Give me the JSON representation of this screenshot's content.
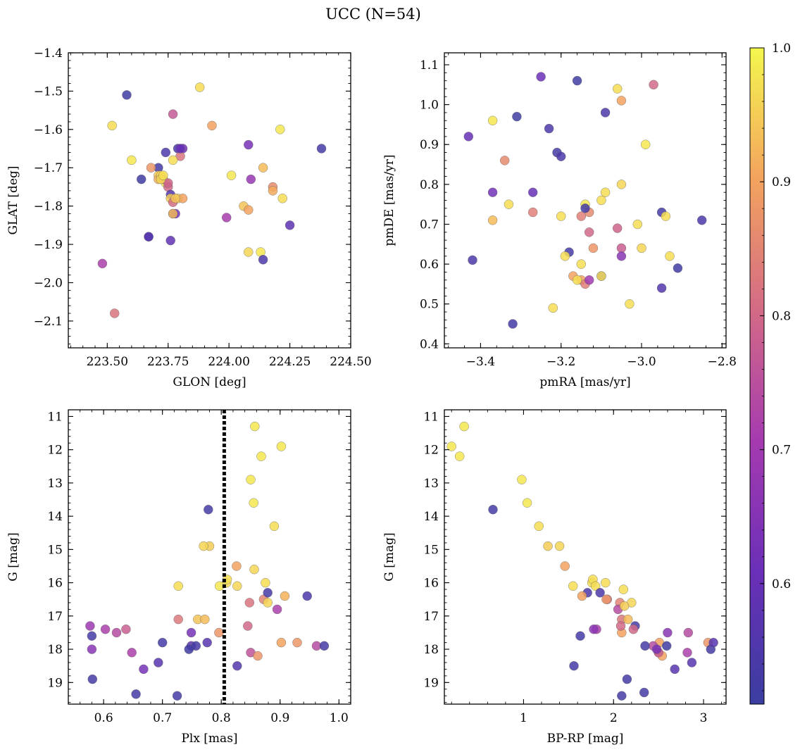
{
  "figure": {
    "title": "UCC (N=54)"
  },
  "chart_data": [
    {
      "type": "scatter",
      "xlabel": "GLON [deg]",
      "ylabel": "GLAT [deg]",
      "xlim": [
        223.34,
        224.5
      ],
      "ylim": [
        -2.17,
        -1.4
      ],
      "xticks": [
        223.5,
        223.75,
        224.0,
        224.25,
        224.5
      ],
      "xticklabels": [
        "223.50",
        "223.75",
        "224.00",
        "224.25",
        "224.50"
      ],
      "yticks": [
        -2.1,
        -2.0,
        -1.9,
        -1.8,
        -1.7,
        -1.6,
        -1.5,
        -1.4
      ],
      "yticklabels": [
        "−2.1",
        "−2.0",
        "−1.9",
        "−1.8",
        "−1.7",
        "−1.6",
        "−1.5",
        "−1.4"
      ],
      "x": [
        223.58,
        223.52,
        223.6,
        223.88,
        223.93,
        223.77,
        223.64,
        223.67,
        223.74,
        223.71,
        223.79,
        223.81,
        223.71,
        223.74,
        223.75,
        223.76,
        223.77,
        223.78,
        223.8,
        223.73,
        223.71,
        223.68,
        223.72,
        223.76,
        223.77,
        223.79,
        223.81,
        223.8,
        223.75,
        223.77,
        223.77,
        223.67,
        223.76,
        223.48,
        223.53,
        224.08,
        224.01,
        224.09,
        224.14,
        224.21,
        224.18,
        224.18,
        224.22,
        224.38,
        224.06,
        224.08,
        223.99,
        224.08,
        224.13,
        224.14,
        224.25,
        223.72,
        223.73,
        223.78
      ],
      "y": [
        -1.51,
        -1.59,
        -1.68,
        -1.49,
        -1.59,
        -1.56,
        -1.73,
        -1.88,
        -1.66,
        -1.7,
        -1.65,
        -1.65,
        -1.72,
        -1.74,
        -1.75,
        -1.77,
        -1.82,
        -1.82,
        -1.67,
        -1.73,
        -1.73,
        -1.7,
        -1.72,
        -1.78,
        -1.68,
        -1.78,
        -1.78,
        -1.65,
        -1.74,
        -1.79,
        -1.82,
        -1.88,
        -1.89,
        -1.95,
        -2.08,
        -1.64,
        -1.72,
        -1.73,
        -1.7,
        -1.6,
        -1.75,
        -1.76,
        -1.78,
        -1.65,
        -1.8,
        -1.81,
        -1.83,
        -1.92,
        -1.92,
        -1.94,
        -1.85,
        -1.73,
        -1.72,
        -1.78
      ],
      "c": [
        0.52,
        0.97,
        0.98,
        0.97,
        0.9,
        0.77,
        0.52,
        0.55,
        0.55,
        0.53,
        0.55,
        0.62,
        0.95,
        0.98,
        0.8,
        0.56,
        0.55,
        0.62,
        0.82,
        0.9,
        0.92,
        0.88,
        0.96,
        0.95,
        0.97,
        0.97,
        0.9,
        0.6,
        0.79,
        0.81,
        0.93,
        0.57,
        0.59,
        0.72,
        0.82,
        0.63,
        0.98,
        0.68,
        0.93,
        0.98,
        0.86,
        0.91,
        0.97,
        0.53,
        0.94,
        0.9,
        0.71,
        0.96,
        0.98,
        0.55,
        0.58,
        0.96,
        0.97,
        0.94
      ]
    },
    {
      "type": "scatter",
      "xlabel": "pmRA [mas/yr]",
      "ylabel": "pmDE [mas/yr]",
      "xlim": [
        -3.49,
        -2.79
      ],
      "ylim": [
        0.39,
        1.13
      ],
      "xticks": [
        -3.4,
        -3.2,
        -3.0,
        -2.8
      ],
      "xticklabels": [
        "−3.4",
        "−3.2",
        "−3.0",
        "−2.8"
      ],
      "yticks": [
        0.4,
        0.5,
        0.6,
        0.7,
        0.8,
        0.9,
        1.0,
        1.1
      ],
      "yticklabels": [
        "0.4",
        "0.5",
        "0.6",
        "0.7",
        "0.8",
        "0.9",
        "1.0",
        "1.1"
      ],
      "x": [
        -3.25,
        -3.16,
        -2.97,
        -3.06,
        -3.05,
        -3.43,
        -3.37,
        -3.31,
        -3.23,
        -3.09,
        -3.34,
        -3.21,
        -3.2,
        -2.99,
        -3.37,
        -3.27,
        -3.05,
        -3.09,
        -3.1,
        -3.37,
        -3.33,
        -3.27,
        -3.14,
        -3.2,
        -3.13,
        -3.15,
        -3.14,
        -3.15,
        -3.13,
        -3.06,
        -2.95,
        -2.94,
        -2.85,
        -3.01,
        -3.18,
        -3.19,
        -3.12,
        -3.15,
        -3.05,
        -3.0,
        -3.05,
        -2.93,
        -3.42,
        -2.91,
        -3.17,
        -3.16,
        -3.14,
        -3.13,
        -3.1,
        -3.22,
        -3.03,
        -3.1,
        -3.32,
        -2.95
      ],
      "y": [
        1.07,
        1.06,
        1.05,
        1.04,
        1.01,
        0.92,
        0.96,
        0.97,
        0.94,
        0.98,
        0.86,
        0.88,
        0.87,
        0.9,
        0.78,
        0.78,
        0.8,
        0.78,
        0.76,
        0.71,
        0.75,
        0.73,
        0.75,
        0.72,
        0.73,
        0.72,
        0.74,
        0.6,
        0.68,
        0.69,
        0.73,
        0.72,
        0.71,
        0.7,
        0.63,
        0.62,
        0.64,
        0.56,
        0.64,
        0.64,
        0.62,
        0.62,
        0.61,
        0.59,
        0.57,
        0.56,
        0.55,
        0.56,
        0.57,
        0.49,
        0.5,
        0.57,
        0.45,
        0.54
      ],
      "c": [
        0.61,
        0.52,
        0.8,
        0.97,
        0.9,
        0.6,
        0.98,
        0.52,
        0.55,
        0.55,
        0.86,
        0.53,
        0.55,
        0.98,
        0.62,
        0.6,
        0.96,
        0.97,
        0.97,
        0.93,
        0.97,
        0.84,
        0.98,
        0.97,
        0.86,
        0.84,
        0.53,
        0.97,
        0.8,
        0.79,
        0.53,
        0.97,
        0.55,
        0.97,
        0.53,
        0.97,
        0.88,
        0.9,
        0.78,
        0.96,
        0.66,
        0.97,
        0.55,
        0.52,
        0.9,
        0.97,
        0.84,
        0.7,
        0.53,
        0.97,
        0.97,
        0.97,
        0.53,
        0.56
      ]
    },
    {
      "type": "scatter",
      "xlabel": "Plx [mas]",
      "ylabel": "G [mag]",
      "xlim": [
        0.54,
        1.02
      ],
      "ylim": [
        19.65,
        10.8
      ],
      "xticks": [
        0.6,
        0.7,
        0.8,
        0.9,
        1.0
      ],
      "xticklabels": [
        "0.6",
        "0.7",
        "0.8",
        "0.9",
        "1.0"
      ],
      "yticks": [
        11,
        12,
        13,
        14,
        15,
        16,
        17,
        18,
        19
      ],
      "yticklabels": [
        "11",
        "12",
        "13",
        "14",
        "15",
        "16",
        "17",
        "18",
        "19"
      ],
      "vline": 0.805,
      "x": [
        0.857,
        0.902,
        0.868,
        0.85,
        0.855,
        0.89,
        0.778,
        0.78,
        0.77,
        0.727,
        0.875,
        0.827,
        0.856,
        0.809,
        0.81,
        0.826,
        0.797,
        0.848,
        0.872,
        0.879,
        0.908,
        0.946,
        0.895,
        0.727,
        0.76,
        0.772,
        0.796,
        0.845,
        0.962,
        0.975,
        0.929,
        0.902,
        0.85,
        0.862,
        0.577,
        0.603,
        0.622,
        0.638,
        0.58,
        0.58,
        0.648,
        0.7,
        0.749,
        0.749,
        0.757,
        0.776,
        0.745,
        0.693,
        0.668,
        0.827,
        0.581,
        0.655,
        0.725,
        0.879
      ],
      "y": [
        11.3,
        11.9,
        12.2,
        12.9,
        13.6,
        14.3,
        13.8,
        14.9,
        14.9,
        16.1,
        16.0,
        16.1,
        15.6,
        16.0,
        15.9,
        15.5,
        16.1,
        16.6,
        16.5,
        16.6,
        16.4,
        16.4,
        16.8,
        17.1,
        17.1,
        17.1,
        17.5,
        17.3,
        17.9,
        17.9,
        17.8,
        17.8,
        18.1,
        18.2,
        17.3,
        17.4,
        17.5,
        17.4,
        17.6,
        18.0,
        18.1,
        17.8,
        17.5,
        17.9,
        17.9,
        17.8,
        18.0,
        18.4,
        18.6,
        18.5,
        18.9,
        19.35,
        19.4,
        16.3
      ],
      "c": [
        0.98,
        0.98,
        0.98,
        0.98,
        0.98,
        0.97,
        0.53,
        0.95,
        0.96,
        0.97,
        0.97,
        0.96,
        0.96,
        0.97,
        0.97,
        0.9,
        0.98,
        0.82,
        0.85,
        0.96,
        0.92,
        0.55,
        0.72,
        0.83,
        0.94,
        0.93,
        0.88,
        0.8,
        0.74,
        0.53,
        0.88,
        0.9,
        0.76,
        0.88,
        0.69,
        0.72,
        0.74,
        0.78,
        0.53,
        0.66,
        0.72,
        0.53,
        0.63,
        0.57,
        0.53,
        0.57,
        0.52,
        0.57,
        0.63,
        0.56,
        0.53,
        0.53,
        0.53,
        0.53
      ]
    },
    {
      "type": "scatter",
      "xlabel": "BP-RP [mag]",
      "ylabel": "G [mag]",
      "xlim": [
        0.12,
        3.25
      ],
      "ylim": [
        19.65,
        10.8
      ],
      "xticks": [
        1,
        2,
        3
      ],
      "xticklabels": [
        "1",
        "2",
        "3"
      ],
      "yticks": [
        11,
        12,
        13,
        14,
        15,
        16,
        17,
        18,
        19
      ],
      "yticklabels": [
        "11",
        "12",
        "13",
        "14",
        "15",
        "16",
        "17",
        "18",
        "19"
      ],
      "x": [
        0.34,
        0.2,
        0.29,
        0.98,
        1.04,
        1.17,
        0.66,
        1.27,
        1.4,
        1.46,
        1.55,
        1.76,
        1.77,
        1.8,
        1.91,
        2.11,
        1.93,
        2.07,
        2.2,
        1.71,
        1.65,
        2.09,
        1.81,
        2.16,
        2.09,
        2.24,
        2.05,
        2.08,
        2.22,
        2.51,
        2.5,
        2.44,
        2.54,
        2.6,
        2.83,
        2.82,
        3.05,
        3.08,
        3.11,
        2.35,
        2.59,
        2.5,
        2.48,
        2.68,
        2.87,
        1.56,
        1.63,
        2.15,
        2.09,
        2.34,
        1.85,
        1.92,
        2.12,
        1.78
      ],
      "y": [
        11.3,
        11.9,
        12.2,
        12.9,
        13.6,
        14.3,
        13.8,
        14.9,
        14.9,
        15.5,
        16.1,
        16.0,
        15.9,
        16.1,
        16.0,
        16.2,
        16.5,
        16.6,
        16.6,
        16.3,
        16.4,
        17.1,
        17.4,
        17.1,
        17.5,
        17.3,
        16.8,
        17.3,
        17.4,
        17.8,
        18.1,
        17.9,
        18.2,
        17.5,
        17.5,
        18.1,
        17.8,
        18.0,
        17.8,
        17.9,
        17.9,
        18.1,
        18.0,
        18.6,
        18.4,
        18.5,
        17.6,
        18.9,
        19.4,
        19.3,
        16.3,
        16.5,
        16.7,
        17.4
      ],
      "c": [
        0.98,
        0.98,
        0.98,
        0.98,
        0.98,
        0.97,
        0.53,
        0.95,
        0.96,
        0.9,
        0.97,
        0.97,
        0.97,
        0.97,
        0.97,
        0.97,
        0.82,
        0.85,
        0.96,
        0.55,
        0.9,
        0.83,
        0.72,
        0.93,
        0.9,
        0.53,
        0.74,
        0.8,
        0.8,
        0.9,
        0.88,
        0.74,
        0.9,
        0.66,
        0.74,
        0.72,
        0.88,
        0.53,
        0.57,
        0.53,
        0.52,
        0.78,
        0.63,
        0.57,
        0.57,
        0.53,
        0.53,
        0.53,
        0.53,
        0.53,
        0.55,
        0.88,
        0.95,
        0.66
      ]
    }
  ],
  "colorbar": {
    "cmap": "plasma",
    "range": [
      0.51,
      1.0
    ],
    "ticks": [
      0.6,
      0.7,
      0.8,
      0.9,
      1.0
    ],
    "ticklabels": [
      "0.6",
      "0.7",
      "0.8",
      "0.9",
      "1.0"
    ]
  }
}
